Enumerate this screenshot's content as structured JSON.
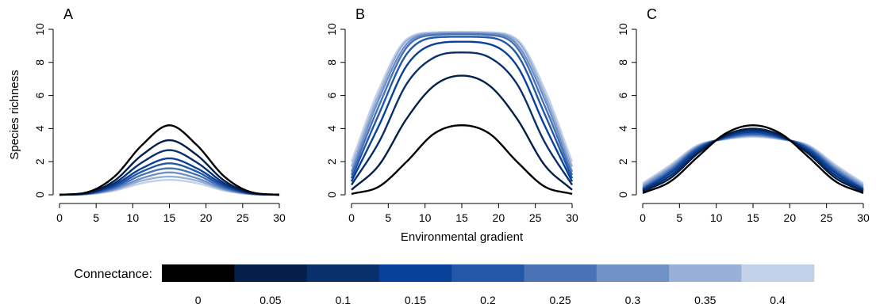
{
  "chart_data": {
    "type": "line",
    "xlabel": "Environmental gradient",
    "ylabel": "Species richness",
    "xlim": [
      0,
      30
    ],
    "ylim": [
      0,
      10
    ],
    "xticks": [
      "0",
      "5",
      "10",
      "15",
      "20",
      "25",
      "30"
    ],
    "yticks": [
      "0",
      "2",
      "4",
      "6",
      "8",
      "10"
    ],
    "legend": {
      "title": "Connectance:",
      "placement": "bottom",
      "levels": [
        "0",
        "0.05",
        "0.1",
        "0.15",
        "0.2",
        "0.25",
        "0.3",
        "0.35",
        "0.4"
      ],
      "colors": [
        "#000000",
        "#041f4a",
        "#08306b",
        "#08409a",
        "#2357a8",
        "#4a73b5",
        "#6f91c6",
        "#98b0d8",
        "#c2d1e8"
      ]
    },
    "panels": [
      {
        "label": "A",
        "peak_x": 15,
        "series": [
          {
            "values": [
              0.0,
              0.15,
              1.1,
              3.0,
              4.2,
              3.0,
              1.1,
              0.15,
              0.0
            ]
          },
          {
            "values": [
              0.0,
              0.11,
              0.85,
              2.4,
              3.3,
              2.4,
              0.85,
              0.11,
              0.0
            ]
          },
          {
            "values": [
              0.0,
              0.09,
              0.7,
              1.95,
              2.7,
              1.95,
              0.7,
              0.09,
              0.0
            ]
          },
          {
            "values": [
              0.0,
              0.08,
              0.6,
              1.6,
              2.2,
              1.6,
              0.6,
              0.08,
              0.0
            ]
          },
          {
            "values": [
              0.0,
              0.07,
              0.5,
              1.4,
              1.9,
              1.4,
              0.5,
              0.07,
              0.0
            ]
          },
          {
            "values": [
              0.0,
              0.06,
              0.42,
              1.2,
              1.6,
              1.2,
              0.42,
              0.06,
              0.0
            ]
          },
          {
            "values": [
              0.0,
              0.05,
              0.35,
              1.0,
              1.35,
              1.0,
              0.35,
              0.05,
              0.0
            ]
          },
          {
            "values": [
              0.0,
              0.04,
              0.3,
              0.85,
              1.1,
              0.85,
              0.3,
              0.04,
              0.0
            ]
          },
          {
            "values": [
              0.0,
              0.03,
              0.25,
              0.7,
              0.9,
              0.7,
              0.25,
              0.03,
              0.0
            ]
          }
        ]
      },
      {
        "label": "B",
        "peak_x": 15,
        "series": [
          {
            "values": [
              0.05,
              0.5,
              2.0,
              3.7,
              4.2,
              3.7,
              2.0,
              0.5,
              0.05
            ]
          },
          {
            "values": [
              0.3,
              1.8,
              4.6,
              6.6,
              7.2,
              6.6,
              4.6,
              1.8,
              0.3
            ]
          },
          {
            "values": [
              0.6,
              3.2,
              6.7,
              8.3,
              8.6,
              8.3,
              6.7,
              3.2,
              0.6
            ]
          },
          {
            "values": [
              0.8,
              4.2,
              7.8,
              9.1,
              9.25,
              9.1,
              7.8,
              4.2,
              0.8
            ]
          },
          {
            "values": [
              1.0,
              4.9,
              8.5,
              9.5,
              9.55,
              9.5,
              8.5,
              4.9,
              1.0
            ]
          },
          {
            "values": [
              1.2,
              5.4,
              8.9,
              9.65,
              9.7,
              9.65,
              8.9,
              5.4,
              1.2
            ]
          },
          {
            "values": [
              1.4,
              5.8,
              9.1,
              9.72,
              9.75,
              9.72,
              9.1,
              5.8,
              1.4
            ]
          },
          {
            "values": [
              1.7,
              6.1,
              9.3,
              9.77,
              9.8,
              9.77,
              9.3,
              6.1,
              1.7
            ]
          },
          {
            "values": [
              2.0,
              6.4,
              9.4,
              9.82,
              9.85,
              9.82,
              9.4,
              6.4,
              2.0
            ]
          }
        ]
      },
      {
        "label": "C",
        "peak_x": 15,
        "series": [
          {
            "values": [
              0.1,
              0.8,
              2.3,
              3.7,
              4.2,
              3.7,
              2.3,
              0.8,
              0.1
            ]
          },
          {
            "values": [
              0.2,
              1.0,
              2.5,
              3.6,
              4.0,
              3.6,
              2.5,
              1.0,
              0.2
            ]
          },
          {
            "values": [
              0.25,
              1.15,
              2.6,
              3.55,
              3.9,
              3.55,
              2.6,
              1.15,
              0.25
            ]
          },
          {
            "values": [
              0.3,
              1.3,
              2.7,
              3.5,
              3.8,
              3.5,
              2.7,
              1.3,
              0.3
            ]
          },
          {
            "values": [
              0.35,
              1.4,
              2.8,
              3.45,
              3.72,
              3.45,
              2.8,
              1.4,
              0.35
            ]
          },
          {
            "values": [
              0.4,
              1.5,
              2.85,
              3.42,
              3.65,
              3.42,
              2.85,
              1.5,
              0.4
            ]
          },
          {
            "values": [
              0.5,
              1.6,
              2.9,
              3.4,
              3.6,
              3.4,
              2.9,
              1.6,
              0.5
            ]
          },
          {
            "values": [
              0.6,
              1.7,
              2.95,
              3.37,
              3.55,
              3.37,
              2.95,
              1.7,
              0.6
            ]
          },
          {
            "values": [
              0.7,
              1.8,
              3.0,
              3.35,
              3.5,
              3.35,
              3.0,
              1.8,
              0.7
            ]
          }
        ]
      }
    ]
  }
}
